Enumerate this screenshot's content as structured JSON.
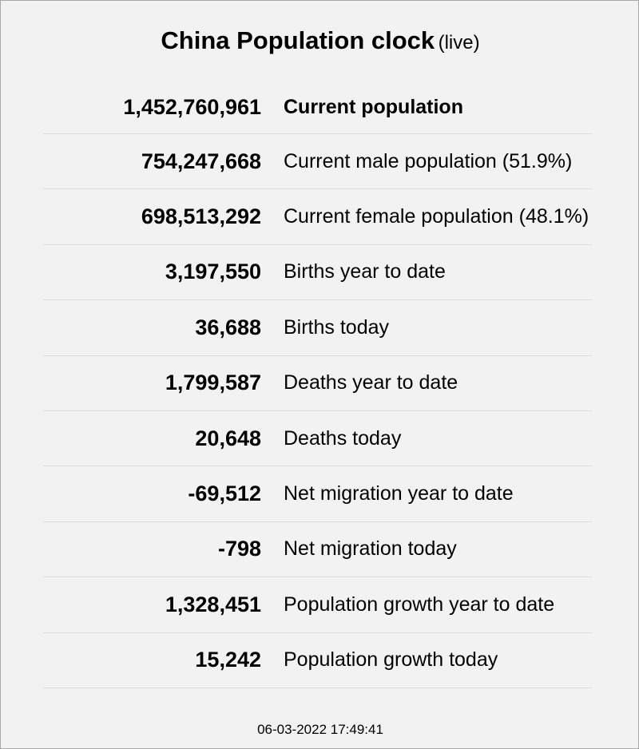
{
  "header": {
    "title": "China Population clock",
    "subtitle": "(live)"
  },
  "stats": [
    {
      "value": "1,452,760,961",
      "label": "Current population",
      "emphasis": true
    },
    {
      "value": "754,247,668",
      "label": "Current male population (51.9%)",
      "emphasis": false
    },
    {
      "value": "698,513,292",
      "label": "Current female population (48.1%)",
      "emphasis": false
    },
    {
      "value": "3,197,550",
      "label": "Births year to date",
      "emphasis": false
    },
    {
      "value": "36,688",
      "label": "Births today",
      "emphasis": false
    },
    {
      "value": "1,799,587",
      "label": "Deaths year to date",
      "emphasis": false
    },
    {
      "value": "20,648",
      "label": "Deaths today",
      "emphasis": false
    },
    {
      "value": "-69,512",
      "label": "Net migration year to date",
      "emphasis": false
    },
    {
      "value": "-798",
      "label": "Net migration today",
      "emphasis": false
    },
    {
      "value": "1,328,451",
      "label": "Population growth year to date",
      "emphasis": false
    },
    {
      "value": "15,242",
      "label": "Population growth today",
      "emphasis": false
    }
  ],
  "footer": {
    "timestamp": "06-03-2022 17:49:41"
  },
  "colors": {
    "background": "#f2f2f2",
    "border": "#a8a8a8",
    "divider": "#dcdcdc",
    "text": "#000000"
  }
}
